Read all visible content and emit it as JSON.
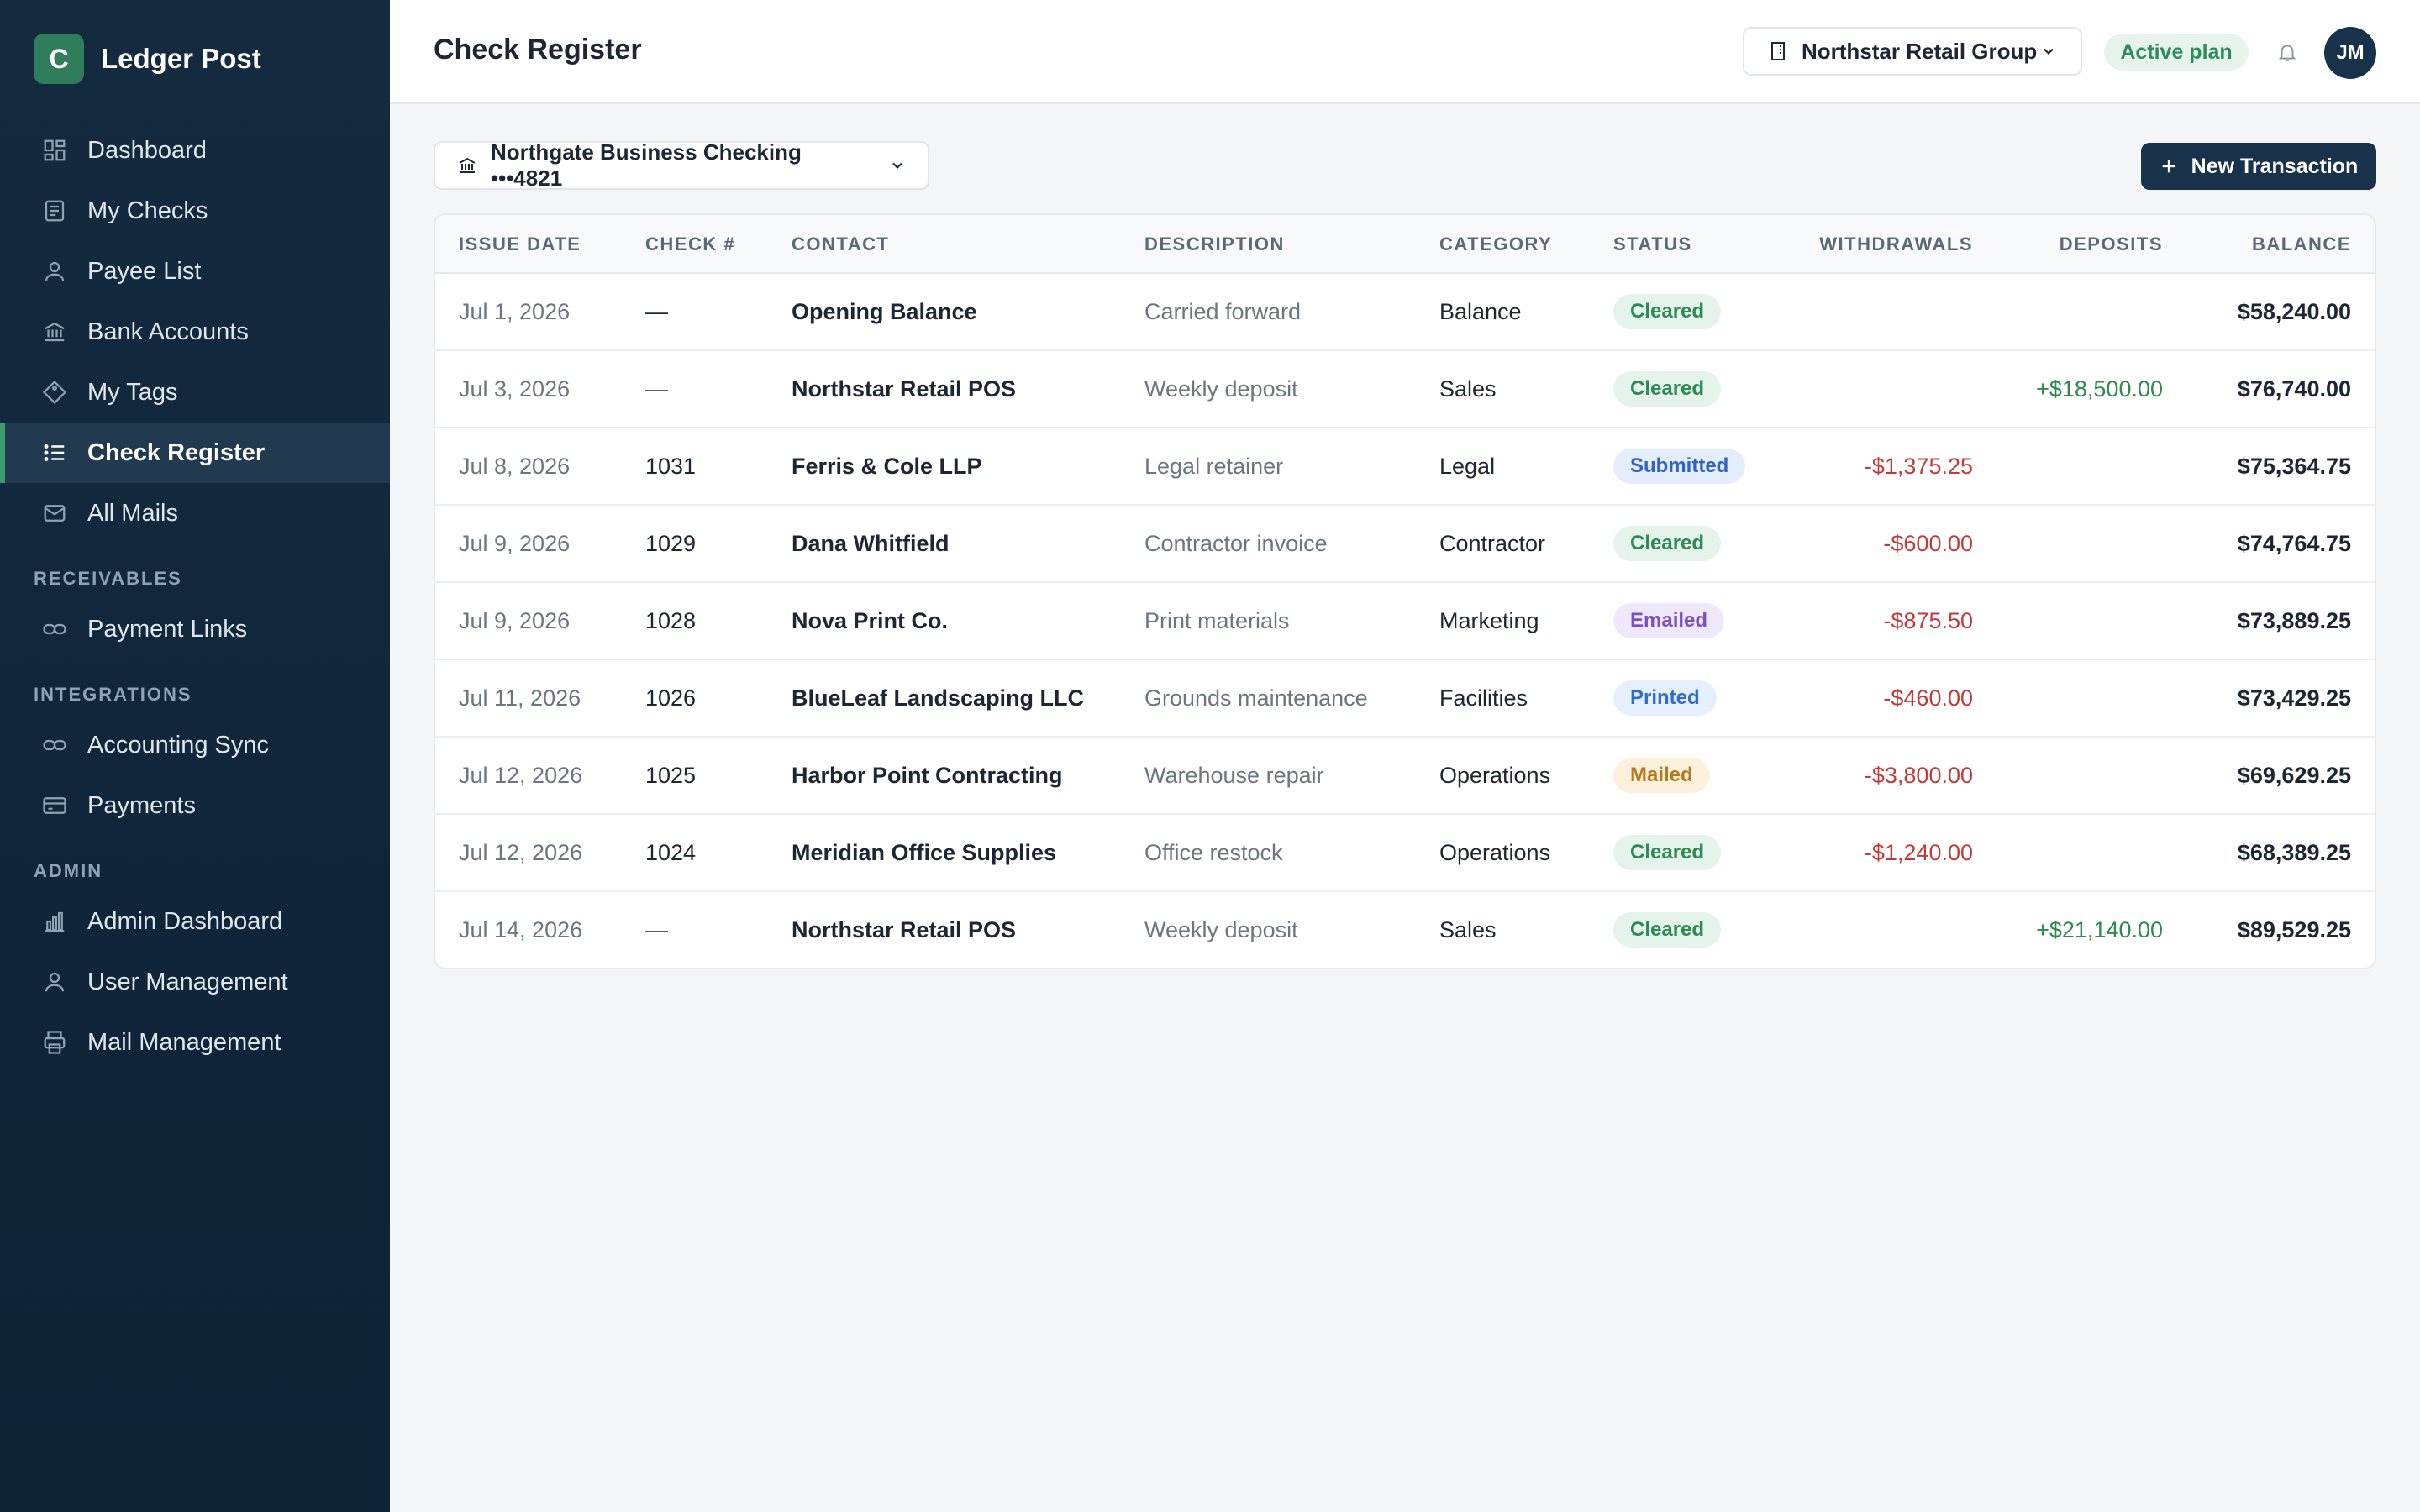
{
  "app": {
    "logo_letter": "C",
    "name": "Ledger Post"
  },
  "sidebar": {
    "items": [
      {
        "label": "Dashboard",
        "icon": "dashboard-icon"
      },
      {
        "label": "My Checks",
        "icon": "checks-icon"
      },
      {
        "label": "Payee List",
        "icon": "user-icon"
      },
      {
        "label": "Bank Accounts",
        "icon": "bank-icon"
      },
      {
        "label": "My Tags",
        "icon": "tag-icon"
      },
      {
        "label": "Check Register",
        "icon": "list-icon",
        "active": true
      },
      {
        "label": "All Mails",
        "icon": "mail-icon"
      }
    ],
    "sections": {
      "receivables": {
        "title": "RECEIVABLES",
        "items": [
          {
            "label": "Payment Links",
            "icon": "link-icon"
          }
        ]
      },
      "integrations": {
        "title": "INTEGRATIONS",
        "items": [
          {
            "label": "Accounting Sync",
            "icon": "sync-icon"
          },
          {
            "label": "Payments",
            "icon": "card-icon"
          }
        ]
      },
      "admin": {
        "title": "ADMIN",
        "items": [
          {
            "label": "Admin Dashboard",
            "icon": "bar-chart-icon"
          },
          {
            "label": "User Management",
            "icon": "user-icon"
          },
          {
            "label": "Mail Management",
            "icon": "printer-icon"
          }
        ]
      }
    }
  },
  "header": {
    "title": "Check Register",
    "org": "Northstar Retail Group",
    "plan": "Active plan",
    "avatar": "JM"
  },
  "toolbar": {
    "account": "Northgate Business Checking •••4821",
    "new_label": "New Transaction"
  },
  "table": {
    "columns": {
      "issue_date": "ISSUE DATE",
      "check": "CHECK #",
      "contact": "CONTACT",
      "description": "DESCRIPTION",
      "category": "CATEGORY",
      "status": "STATUS",
      "withdrawals": "WITHDRAWALS",
      "deposits": "DEPOSITS",
      "balance": "BALANCE"
    },
    "rows": [
      {
        "date": "Jul 1, 2026",
        "check": "—",
        "contact": "Opening Balance",
        "description": "Carried forward",
        "category": "Balance",
        "status": "Cleared",
        "withdrawal": "",
        "deposit": "",
        "balance": "$58,240.00"
      },
      {
        "date": "Jul 3, 2026",
        "check": "—",
        "contact": "Northstar Retail POS",
        "description": "Weekly deposit",
        "category": "Sales",
        "status": "Cleared",
        "withdrawal": "",
        "deposit": "+$18,500.00",
        "balance": "$76,740.00"
      },
      {
        "date": "Jul 8, 2026",
        "check": "1031",
        "contact": "Ferris & Cole LLP",
        "description": "Legal retainer",
        "category": "Legal",
        "status": "Submitted",
        "withdrawal": "-$1,375.25",
        "deposit": "",
        "balance": "$75,364.75"
      },
      {
        "date": "Jul 9, 2026",
        "check": "1029",
        "contact": "Dana Whitfield",
        "description": "Contractor invoice",
        "category": "Contractor",
        "status": "Cleared",
        "withdrawal": "-$600.00",
        "deposit": "",
        "balance": "$74,764.75"
      },
      {
        "date": "Jul 9, 2026",
        "check": "1028",
        "contact": "Nova Print Co.",
        "description": "Print materials",
        "category": "Marketing",
        "status": "Emailed",
        "withdrawal": "-$875.50",
        "deposit": "",
        "balance": "$73,889.25"
      },
      {
        "date": "Jul 11, 2026",
        "check": "1026",
        "contact": "BlueLeaf Landscaping LLC",
        "description": "Grounds maintenance",
        "category": "Facilities",
        "status": "Printed",
        "withdrawal": "-$460.00",
        "deposit": "",
        "balance": "$73,429.25"
      },
      {
        "date": "Jul 12, 2026",
        "check": "1025",
        "contact": "Harbor Point Contracting",
        "description": "Warehouse repair",
        "category": "Operations",
        "status": "Mailed",
        "withdrawal": "-$3,800.00",
        "deposit": "",
        "balance": "$69,629.25"
      },
      {
        "date": "Jul 12, 2026",
        "check": "1024",
        "contact": "Meridian Office Supplies",
        "description": "Office restock",
        "category": "Operations",
        "status": "Cleared",
        "withdrawal": "-$1,240.00",
        "deposit": "",
        "balance": "$68,389.25"
      },
      {
        "date": "Jul 14, 2026",
        "check": "—",
        "contact": "Northstar Retail POS",
        "description": "Weekly deposit",
        "category": "Sales",
        "status": "Cleared",
        "withdrawal": "",
        "deposit": "+$21,140.00",
        "balance": "$89,529.25"
      }
    ]
  },
  "colors": {
    "sidebar_bg": "#122a3f",
    "accent": "#2f7d5a",
    "primary_button": "#17324a",
    "withdrawal": "#c23b3b",
    "deposit": "#2f8a4f"
  }
}
